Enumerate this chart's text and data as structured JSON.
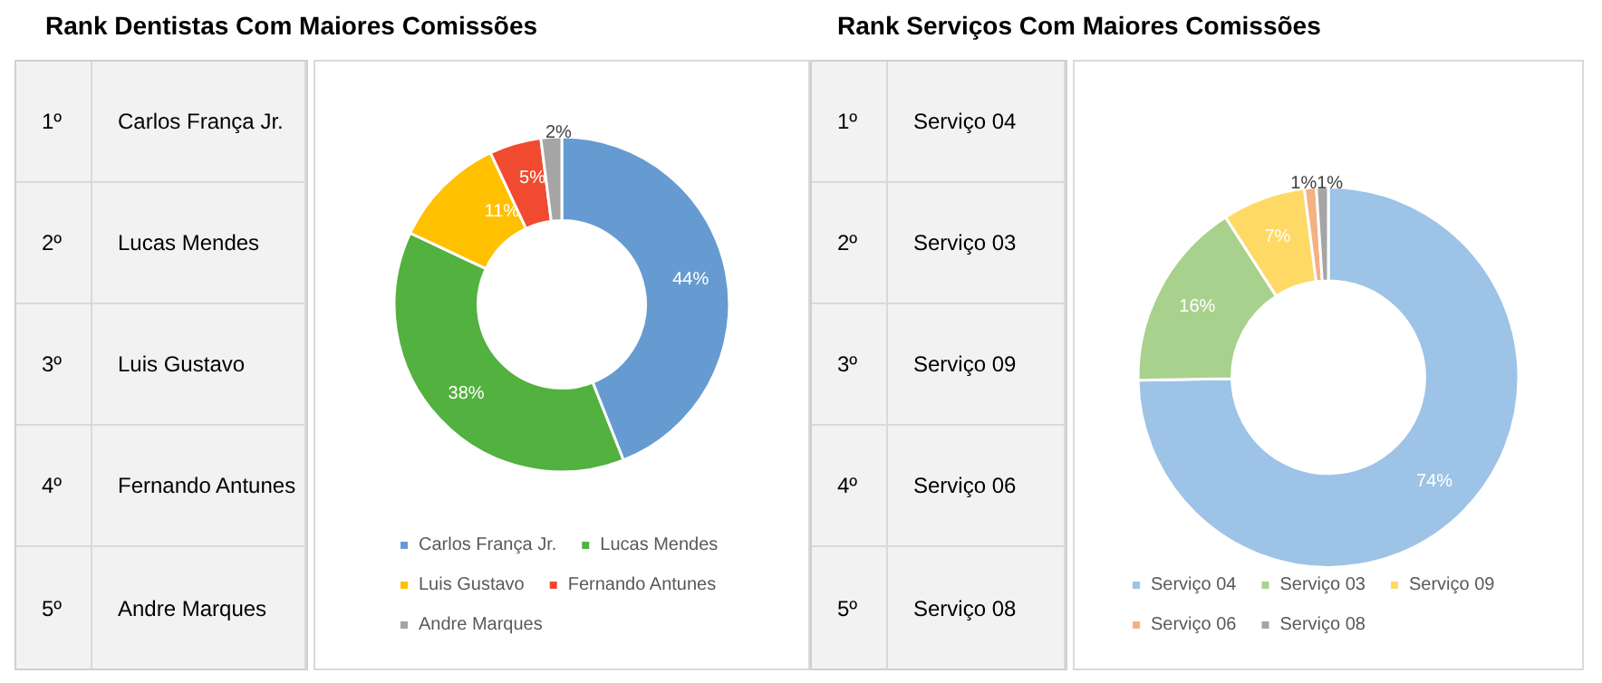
{
  "chart_data": [
    {
      "type": "donut",
      "title": "Rank Dentistas Com Maiores Comissões",
      "annotations": [
        "1º",
        "Carlos França Jr.",
        "2º",
        "Lucas Mendes",
        "3º",
        "Luis Gustavo",
        "4º",
        "Fernando Antunes",
        "5º",
        "Andre Marques"
      ],
      "categories": [
        "Carlos França Jr.",
        "Lucas Mendes",
        "Luis Gustavo",
        "Fernando Antunes",
        "Andre Marques"
      ],
      "values": [
        44,
        38,
        11,
        5,
        2
      ],
      "value_labels": [
        "44%",
        "38%",
        "11%",
        "5%",
        "2%"
      ],
      "colors": [
        "#659bd0",
        "#52b13f",
        "#ffc000",
        "#f04b31",
        "#a5a5a5"
      ],
      "legend": "bottom"
    },
    {
      "type": "donut",
      "title": "Rank Serviços Com Maiores Comissões",
      "annotations": [
        "1º",
        "Serviço 04",
        "2º",
        "Serviço 03",
        "3º",
        "Serviço 09",
        "4º",
        "Serviço 06",
        "5º",
        "Serviço 08"
      ],
      "categories": [
        "Serviço 04",
        "Serviço 03",
        "Serviço 09",
        "Serviço 06",
        "Serviço 08"
      ],
      "values": [
        74,
        16,
        7,
        1,
        1
      ],
      "value_labels": [
        "74%",
        "16%",
        "7%",
        "1%",
        "1%"
      ],
      "colors": [
        "#9dc3e6",
        "#a9d18e",
        "#ffd966",
        "#f4b183",
        "#a5a5a5"
      ],
      "legend": "bottom"
    }
  ]
}
